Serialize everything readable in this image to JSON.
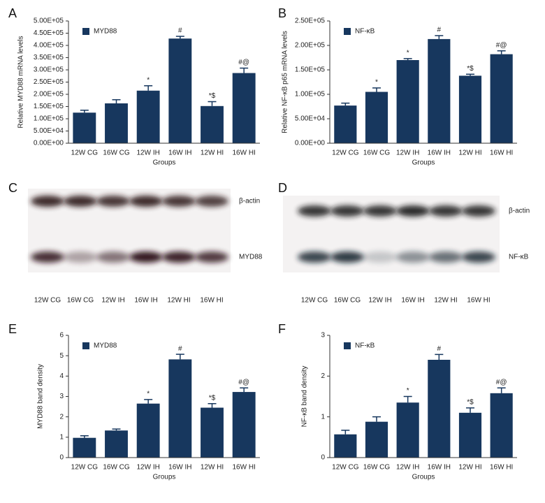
{
  "chart_data": [
    {
      "type": "bar",
      "panel": "A",
      "ylabel": "Relative MYD88 mRNA levels",
      "xlabel": "Groups",
      "categories": [
        "12W CG",
        "16W CG",
        "12W IH",
        "16W IH",
        "12W HI",
        "16W HI"
      ],
      "series": [
        {
          "name": "MYD88",
          "color": "#17375e",
          "values": [
            125000,
            163000,
            215000,
            428000,
            152000,
            287000
          ],
          "errors": [
            10000,
            15000,
            20000,
            9000,
            18000,
            20000
          ]
        }
      ],
      "annotations": [
        null,
        null,
        "*",
        "#",
        "*$",
        "#@"
      ],
      "ylim": [
        0,
        500000
      ],
      "yticks": [
        {
          "value": 0,
          "label": "0.00E+00"
        },
        {
          "value": 50000,
          "label": "5.00E+04"
        },
        {
          "value": 100000,
          "label": "1.00E+05"
        },
        {
          "value": 150000,
          "label": "1.50E+05"
        },
        {
          "value": 200000,
          "label": "2.00E+05"
        },
        {
          "value": 250000,
          "label": "2.50E+05"
        },
        {
          "value": 300000,
          "label": "3.00E+05"
        },
        {
          "value": 350000,
          "label": "3.50E+05"
        },
        {
          "value": 400000,
          "label": "4.00E+05"
        },
        {
          "value": 450000,
          "label": "4.50E+05"
        },
        {
          "value": 500000,
          "label": "5.00E+05"
        }
      ],
      "legend": "upper left"
    },
    {
      "type": "bar",
      "panel": "B",
      "ylabel": "Relative NF-κB p65 mRNA levels",
      "xlabel": "Groups",
      "categories": [
        "12W CG",
        "16W CG",
        "12W IH",
        "16W IH",
        "12W HI",
        "16W HI"
      ],
      "series": [
        {
          "name": "NF-κB",
          "color": "#17375e",
          "values": [
            77000,
            105000,
            170000,
            213000,
            138000,
            182000
          ],
          "errors": [
            5000,
            8000,
            3000,
            7000,
            3000,
            7000
          ]
        }
      ],
      "annotations": [
        null,
        "*",
        "*",
        "#",
        "*$",
        "#@"
      ],
      "ylim": [
        0,
        250000
      ],
      "yticks": [
        {
          "value": 0,
          "label": "0.00E+00"
        },
        {
          "value": 50000,
          "label": "5.00E+04"
        },
        {
          "value": 100000,
          "label": "1.00E+05"
        },
        {
          "value": 150000,
          "label": "1.50E+05"
        },
        {
          "value": 200000,
          "label": "2.00E+05"
        },
        {
          "value": 250000,
          "label": "2.50E+05"
        }
      ],
      "legend": "upper left"
    },
    {
      "type": "bar",
      "panel": "E",
      "ylabel": "MYD88 band density",
      "xlabel": "Groups",
      "categories": [
        "12W CG",
        "16W CG",
        "12W IH",
        "16W IH",
        "12W HI",
        "16W HI"
      ],
      "series": [
        {
          "name": "MYD88",
          "color": "#17375e",
          "values": [
            0.97,
            1.33,
            2.65,
            4.82,
            2.45,
            3.22
          ],
          "errors": [
            0.1,
            0.07,
            0.2,
            0.25,
            0.2,
            0.2
          ]
        }
      ],
      "annotations": [
        null,
        null,
        "*",
        "#",
        "*$",
        "#@"
      ],
      "ylim": [
        0,
        6
      ],
      "yticks": [
        0,
        1,
        2,
        3,
        4,
        5,
        6
      ],
      "legend": "upper left"
    },
    {
      "type": "bar",
      "panel": "F",
      "ylabel": "NF-κB band density",
      "xlabel": "Groups",
      "categories": [
        "12W CG",
        "16W CG",
        "12W IH",
        "16W IH",
        "12W HI",
        "16W HI"
      ],
      "series": [
        {
          "name": "NF-κB",
          "color": "#17375e",
          "values": [
            0.57,
            0.88,
            1.35,
            2.4,
            1.1,
            1.58
          ],
          "errors": [
            0.1,
            0.12,
            0.15,
            0.13,
            0.12,
            0.13
          ]
        }
      ],
      "annotations": [
        null,
        null,
        "*",
        "#",
        "*$",
        "#@"
      ],
      "ylim": [
        0,
        3
      ],
      "yticks": [
        0,
        1,
        2,
        3
      ],
      "legend": "upper left"
    }
  ],
  "blots": [
    {
      "panel": "C",
      "rows": [
        "β-actin",
        "MYD88"
      ],
      "lanes": [
        "12W CG",
        "16W CG",
        "12W IH",
        "16W IH",
        "12W HI",
        "16W HI"
      ]
    },
    {
      "panel": "D",
      "rows": [
        "β-actin",
        "NF-κB"
      ],
      "lanes": [
        "12W CG",
        "16W CG",
        "12W IH",
        "16W IH",
        "12W HI",
        "16W HI"
      ]
    }
  ]
}
